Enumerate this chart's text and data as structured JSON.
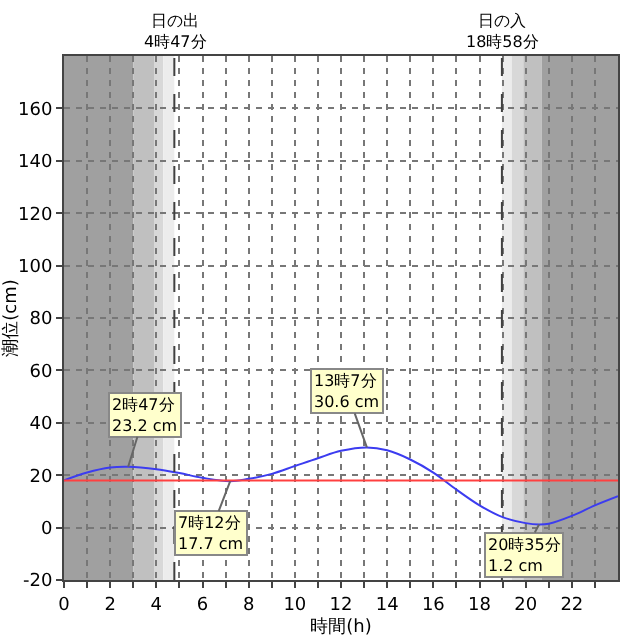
{
  "chart_data": {
    "type": "line",
    "xlabel": "時間(h)",
    "ylabel": "潮位(cm)",
    "series": [
      {
        "color": "#3c3cf0",
        "x": [
          0,
          1,
          2,
          2.78,
          4,
          5,
          6,
          7.2,
          8,
          9,
          10,
          11,
          12,
          13.12,
          14,
          15,
          16,
          17,
          18,
          19,
          20,
          20.58,
          21,
          22,
          23,
          24
        ],
        "values": [
          18,
          21,
          22.9,
          23.2,
          22.3,
          20.8,
          19,
          17.7,
          18.6,
          20.5,
          23.5,
          26.5,
          29.3,
          30.6,
          29.5,
          26,
          21,
          14.5,
          8.5,
          4,
          1.7,
          1.2,
          1.5,
          4.5,
          8.5,
          12
        ]
      }
    ],
    "xlim": [
      0,
      24
    ],
    "ylim": [
      -20,
      180
    ],
    "xticks": [
      0,
      {
        "value": 1,
        "label": null
      },
      2,
      {
        "value": 3,
        "label": null
      },
      4,
      {
        "value": 5,
        "label": null
      },
      6,
      {
        "value": 7,
        "label": null
      },
      8,
      {
        "value": 9,
        "label": null
      },
      10,
      {
        "value": 11,
        "label": null
      },
      12,
      {
        "value": 13,
        "label": null
      },
      14,
      {
        "value": 15,
        "label": null
      },
      16,
      {
        "value": 17,
        "label": null
      },
      18,
      {
        "value": 19,
        "label": null
      },
      20,
      {
        "value": 21,
        "label": null
      },
      22,
      {
        "value": 23,
        "label": null
      }
    ],
    "yticks": [
      -20,
      0,
      20,
      40,
      60,
      80,
      100,
      120,
      140,
      160
    ],
    "grid": true,
    "marker": "none",
    "line_style": "solid",
    "ref_lines": [
      {
        "axis": "y",
        "value": 18,
        "color": "#ff4040",
        "line_style": "solid"
      },
      {
        "axis": "x",
        "value": 4.78,
        "label": "日の出\n4時47分",
        "color": "#404040",
        "line_style": "dashed"
      },
      {
        "axis": "x",
        "value": 18.97,
        "label": "日の入\n18時58分",
        "color": "#404040",
        "line_style": "dashed"
      }
    ],
    "bands": [
      {
        "axis": "x",
        "from": 0,
        "to": 3.0,
        "color": "#a0a0a0"
      },
      {
        "axis": "x",
        "from": 3.0,
        "to": 3.9,
        "color": "#c0c0c0"
      },
      {
        "axis": "x",
        "from": 3.9,
        "to": 4.3,
        "color": "#d8d8d8"
      },
      {
        "axis": "x",
        "from": 4.3,
        "to": 4.78,
        "color": "#ececec"
      },
      {
        "axis": "x",
        "from": 18.97,
        "to": 19.4,
        "color": "#ececec"
      },
      {
        "axis": "x",
        "from": 19.4,
        "to": 19.9,
        "color": "#d8d8d8"
      },
      {
        "axis": "x",
        "from": 19.9,
        "to": 20.7,
        "color": "#c0c0c0"
      },
      {
        "axis": "x",
        "from": 20.7,
        "to": 24,
        "color": "#a0a0a0"
      }
    ],
    "annotations": [
      {
        "text": "2時47分\n23.2 cm",
        "x": 2.78,
        "y": 23.2
      },
      {
        "text": "7時12分\n17.7 cm",
        "x": 7.2,
        "y": 17.7
      },
      {
        "text": "13時7分\n30.6 cm",
        "x": 13.12,
        "y": 30.6
      },
      {
        "text": "20時35分\n1.2 cm",
        "x": 20.58,
        "y": 1.2
      }
    ]
  }
}
